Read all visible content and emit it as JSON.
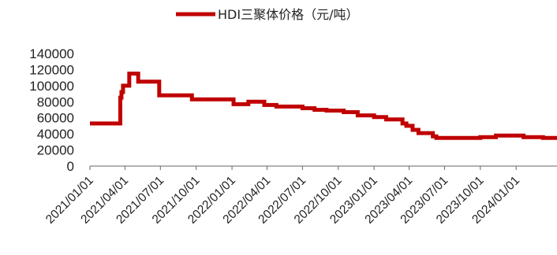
{
  "chart_data": {
    "type": "line",
    "title": "",
    "xlabel": "",
    "ylabel": "",
    "ylim": [
      0,
      140000
    ],
    "y_ticks": [
      0,
      20000,
      40000,
      60000,
      80000,
      100000,
      120000,
      140000
    ],
    "y_tick_labels": [
      "0",
      "20000",
      "40000",
      "60000",
      "80000",
      "100000",
      "120000",
      "140000"
    ],
    "x_range": [
      "2021-01-01",
      "2024-04-15"
    ],
    "x_ticks": [
      "2021-01-01",
      "2021-04-01",
      "2021-07-01",
      "2021-10-01",
      "2022-01-01",
      "2022-04-01",
      "2022-07-01",
      "2022-10-01",
      "2023-01-01",
      "2023-04-01",
      "2023-07-01",
      "2023-10-01",
      "2024-01-01"
    ],
    "x_tick_labels": [
      "2021/01/01",
      "2021/04/01",
      "2021/07/01",
      "2021/10/01",
      "2022/01/01",
      "2022/04/01",
      "2022/07/01",
      "2022/10/01",
      "2023/01/01",
      "2023/04/01",
      "2023/07/01",
      "2023/10/01",
      "2024/01/01"
    ],
    "grid": false,
    "legend_position": "top-center",
    "series": [
      {
        "name": "HDI三聚体价格（元/吨）",
        "color": "#c00000",
        "points": [
          [
            "2021-01-01",
            53000
          ],
          [
            "2021-03-20",
            53000
          ],
          [
            "2021-03-20",
            85000
          ],
          [
            "2021-03-23",
            85000
          ],
          [
            "2021-03-23",
            92000
          ],
          [
            "2021-03-27",
            92000
          ],
          [
            "2021-03-27",
            100000
          ],
          [
            "2021-04-12",
            100000
          ],
          [
            "2021-04-12",
            115000
          ],
          [
            "2021-05-05",
            115000
          ],
          [
            "2021-05-05",
            105000
          ],
          [
            "2021-06-28",
            105000
          ],
          [
            "2021-06-28",
            88000
          ],
          [
            "2021-09-20",
            88000
          ],
          [
            "2021-09-20",
            83000
          ],
          [
            "2022-01-05",
            83000
          ],
          [
            "2022-01-05",
            77000
          ],
          [
            "2022-02-12",
            77000
          ],
          [
            "2022-02-12",
            80000
          ],
          [
            "2022-03-25",
            80000
          ],
          [
            "2022-03-25",
            76000
          ],
          [
            "2022-04-25",
            76000
          ],
          [
            "2022-04-25",
            74000
          ],
          [
            "2022-07-01",
            74000
          ],
          [
            "2022-07-01",
            72000
          ],
          [
            "2022-08-01",
            72000
          ],
          [
            "2022-08-01",
            70000
          ],
          [
            "2022-09-01",
            70000
          ],
          [
            "2022-09-01",
            69000
          ],
          [
            "2022-10-15",
            69000
          ],
          [
            "2022-10-15",
            67000
          ],
          [
            "2022-11-20",
            67000
          ],
          [
            "2022-11-20",
            63000
          ],
          [
            "2023-01-01",
            63000
          ],
          [
            "2023-01-01",
            61000
          ],
          [
            "2023-02-01",
            61000
          ],
          [
            "2023-02-01",
            58000
          ],
          [
            "2023-03-15",
            58000
          ],
          [
            "2023-03-15",
            53000
          ],
          [
            "2023-03-25",
            53000
          ],
          [
            "2023-03-25",
            50000
          ],
          [
            "2023-04-10",
            50000
          ],
          [
            "2023-04-10",
            45000
          ],
          [
            "2023-04-25",
            45000
          ],
          [
            "2023-04-25",
            41000
          ],
          [
            "2023-06-01",
            41000
          ],
          [
            "2023-06-01",
            37000
          ],
          [
            "2023-06-10",
            37000
          ],
          [
            "2023-06-10",
            35000
          ],
          [
            "2023-10-01",
            35000
          ],
          [
            "2023-10-01",
            36000
          ],
          [
            "2023-11-10",
            36000
          ],
          [
            "2023-11-10",
            38000
          ],
          [
            "2024-01-20",
            38000
          ],
          [
            "2024-01-20",
            36000
          ],
          [
            "2024-03-10",
            36000
          ],
          [
            "2024-03-10",
            35000
          ],
          [
            "2024-04-15",
            35000
          ]
        ]
      }
    ]
  }
}
